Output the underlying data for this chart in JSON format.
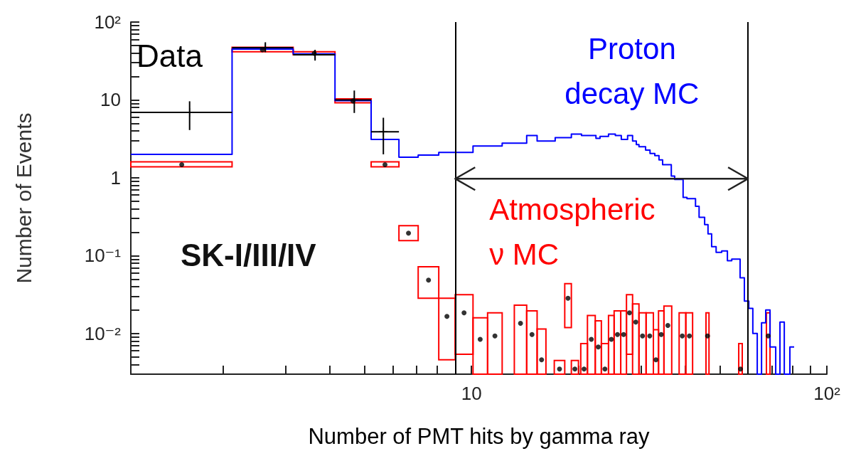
{
  "chart_data": {
    "type": "scatter",
    "xlabel": "Number of PMT hits by gamma ray",
    "ylabel": "Number of Events",
    "log": "xy",
    "xlim": [
      1.1,
      100
    ],
    "ylim": [
      0.003,
      100
    ],
    "xticks": [
      {
        "value": 2,
        "label": null
      },
      {
        "value": 3,
        "label": null
      },
      {
        "value": 4,
        "label": null
      },
      {
        "value": 5,
        "label": null
      },
      {
        "value": 6,
        "label": null
      },
      {
        "value": 7,
        "label": null
      },
      {
        "value": 8,
        "label": null
      },
      {
        "value": 9,
        "label": null
      },
      10,
      {
        "value": 20,
        "label": null
      },
      {
        "value": 30,
        "label": null
      },
      {
        "value": 40,
        "label": null
      },
      {
        "value": 50,
        "label": null
      },
      {
        "value": 60,
        "label": null
      },
      {
        "value": 70,
        "label": null
      },
      {
        "value": 80,
        "label": null
      },
      {
        "value": 90,
        "label": null
      },
      {
        "value": 100,
        "label": "10²"
      }
    ],
    "yticks": [
      {
        "value": 0.004,
        "label": null
      },
      {
        "value": 0.005,
        "label": null
      },
      {
        "value": 0.006,
        "label": null
      },
      {
        "value": 0.007,
        "label": null
      },
      {
        "value": 0.008,
        "label": null
      },
      {
        "value": 0.009,
        "label": null
      },
      {
        "value": 0.01,
        "label": "10⁻²"
      },
      {
        "value": 0.02,
        "label": null
      },
      {
        "value": 0.03,
        "label": null
      },
      {
        "value": 0.04,
        "label": null
      },
      {
        "value": 0.05,
        "label": null
      },
      {
        "value": 0.06,
        "label": null
      },
      {
        "value": 0.07,
        "label": null
      },
      {
        "value": 0.08,
        "label": null
      },
      {
        "value": 0.09,
        "label": null
      },
      {
        "value": 0.1,
        "label": "10⁻¹"
      },
      {
        "value": 0.2,
        "label": null
      },
      {
        "value": 0.3,
        "label": null
      },
      {
        "value": 0.4,
        "label": null
      },
      {
        "value": 0.5,
        "label": null
      },
      {
        "value": 0.6,
        "label": null
      },
      {
        "value": 0.7,
        "label": null
      },
      {
        "value": 0.8,
        "label": null
      },
      {
        "value": 0.9,
        "label": null
      },
      1,
      {
        "value": 2,
        "label": null
      },
      {
        "value": 3,
        "label": null
      },
      {
        "value": 4,
        "label": null
      },
      {
        "value": 5,
        "label": null
      },
      {
        "value": 6,
        "label": null
      },
      {
        "value": 7,
        "label": null
      },
      {
        "value": 8,
        "label": null
      },
      {
        "value": 9,
        "label": null
      },
      10,
      {
        "value": 20,
        "label": null
      },
      {
        "value": 30,
        "label": null
      },
      {
        "value": 40,
        "label": null
      },
      {
        "value": 50,
        "label": null
      },
      {
        "value": 60,
        "label": null
      },
      {
        "value": 70,
        "label": null
      },
      {
        "value": 80,
        "label": null
      },
      {
        "value": 90,
        "label": null
      },
      {
        "value": 100,
        "label": "10²"
      }
    ],
    "grid": false,
    "annotations": [
      "SK-I/III/IV"
    ],
    "ref_lines": [
      {
        "axis": "x",
        "value": 9,
        "color": "#000000"
      },
      {
        "axis": "x",
        "value": 60,
        "color": "#000000"
      }
    ],
    "series": [
      {
        "name": "Proton decay MC",
        "type": "histogram",
        "color": "#0000ff",
        "bins": [
          1.1,
          2.12,
          3.15,
          4.13,
          5.22,
          6.25,
          7.08,
          8.09,
          10.1,
          12.2,
          14.3,
          15.3,
          17.2,
          19.1,
          20.4,
          22.4,
          23.0,
          24.3,
          25.4,
          26.4,
          27.5,
          28.4,
          29.1,
          29.6,
          30.9,
          31.8,
          32.8,
          33.7,
          34.5,
          36.5,
          37.3,
          39.4,
          40.4,
          42.7,
          43.7,
          45.3,
          46.3,
          47.4,
          48.8,
          50.6,
          52.5,
          54.0,
          57.0,
          58.6,
          60.3,
          61.9,
          63.7,
          65.5,
          67.3,
          69.2,
          71.8,
          73.8,
          75.9,
          78.7,
          80.9
        ],
        "values": [
          2.0,
          45,
          39,
          9.8,
          3.1,
          1.84,
          1.96,
          2.12,
          2.56,
          2.78,
          3.49,
          2.96,
          3.28,
          3.63,
          3.49,
          3.2,
          3.4,
          3.63,
          3.49,
          3.1,
          3.49,
          2.96,
          2.67,
          2.5,
          2.27,
          2.05,
          1.93,
          1.7,
          1.47,
          1.05,
          0.95,
          0.56,
          0.54,
          0.43,
          0.31,
          0.25,
          0.19,
          0.13,
          0.11,
          0.115,
          0.086,
          0.09,
          0.052,
          0.026,
          0.021,
          0.01,
          null,
          0.0137,
          0.02,
          0.0067,
          null,
          0.014,
          null,
          0.0067
        ]
      },
      {
        "name": "Atmospheric ν MC",
        "type": "histogram",
        "color": "#ff0000",
        "bins": [
          1.1,
          2.12,
          3.15,
          4.13,
          5.22,
          6.25,
          7.08,
          8.09,
          9.0,
          10.1,
          11.1,
          12.2,
          13.2,
          14.3,
          15.3,
          16.2,
          17.1,
          18.3,
          19.1,
          20.0,
          20.3,
          21.2,
          22.3,
          23.2,
          24.3,
          25.2,
          26.3,
          27.3,
          28.4,
          29.6,
          31.0,
          32.5,
          33.6,
          34.8,
          36.6,
          38.4,
          40.1,
          41.9,
          45.7,
          46.6,
          56.5,
          57.8,
          67.6,
          69.2
        ],
        "base": [
          1.38,
          41.5,
          38,
          9.2,
          1.38,
          0.156,
          0.0284,
          0.0046,
          0.0054,
          0.003,
          0.003,
          null,
          0.003,
          0.003,
          0.003,
          null,
          0.003,
          0.0119,
          0.003,
          null,
          0.003,
          0.003,
          0.003,
          0.003,
          0.003,
          0.003,
          0.003,
          0.0054,
          0.003,
          0.003,
          0.003,
          0.003,
          0.003,
          0.003,
          null,
          0.003,
          0.003,
          null,
          0.003,
          null,
          0.003,
          null,
          0.003
        ],
        "values": [
          0.22,
          6,
          3.5,
          1.1,
          0.22,
          0.087,
          0.0436,
          0.0238,
          0.0261,
          0.0129,
          0.0154,
          null,
          0.0201,
          0.0165,
          0.0084,
          null,
          0.0015,
          0.0318,
          0.0015,
          null,
          0.0044,
          0.014,
          0.0115,
          0.0044,
          0.014,
          0.0165,
          0.0165,
          0.0261,
          0.021,
          0.0154,
          0.0154,
          0.0082,
          0.0165,
          0.0195,
          null,
          0.0154,
          0.0154,
          null,
          0.0154,
          null,
          0.0044,
          null,
          0.0154
        ]
      },
      {
        "color": "#000000",
        "marker": "circle",
        "x": [
          1.53,
          2.58,
          3.61,
          4.64,
          5.71,
          6.65,
          7.57,
          8.53,
          9.53,
          10.58,
          11.64,
          13.74,
          14.8,
          15.75,
          17.69,
          18.69,
          19.54,
          20.74,
          21.74,
          22.74,
          23.74,
          24.75,
          25.75,
          26.8,
          27.84,
          28.99,
          30.29,
          31.74,
          33.04,
          34.19,
          35.69,
          39.19,
          41.04,
          46.15,
          57.15,
          68.39
        ],
        "values": [
          1.47,
          44,
          39.7,
          9.7,
          1.47,
          0.194,
          0.0485,
          0.0166,
          0.0184,
          0.0084,
          0.0093,
          0.0135,
          0.0097,
          0.0046,
          0.0035,
          0.0284,
          0.0035,
          0.0035,
          0.0084,
          0.0067,
          0.0035,
          0.0084,
          0.0097,
          0.0097,
          0.0184,
          0.014,
          0.0093,
          0.0093,
          0.0046,
          0.0097,
          0.0127,
          0.0093,
          0.0093,
          0.0093,
          0.0035,
          0.0093
        ]
      },
      {
        "name": "Data",
        "color": "#000000",
        "marker": "cross",
        "x": [
          1.61,
          2.63,
          3.63,
          4.68,
          5.65
        ],
        "values": [
          6.9,
          47,
          38,
          10,
          3.9
        ],
        "errors": [
          [
            4.1,
            9.6
          ],
          [
            41,
            55
          ],
          [
            32,
            44
          ],
          [
            6.8,
            13.2
          ],
          [
            2.0,
            5.9
          ]
        ],
        "xerrors": [
          [
            1.1,
            2.12
          ],
          [
            2.12,
            3.15
          ],
          [
            3.15,
            4.13
          ],
          [
            4.13,
            5.22
          ],
          [
            5.22,
            6.25
          ]
        ]
      }
    ]
  }
}
